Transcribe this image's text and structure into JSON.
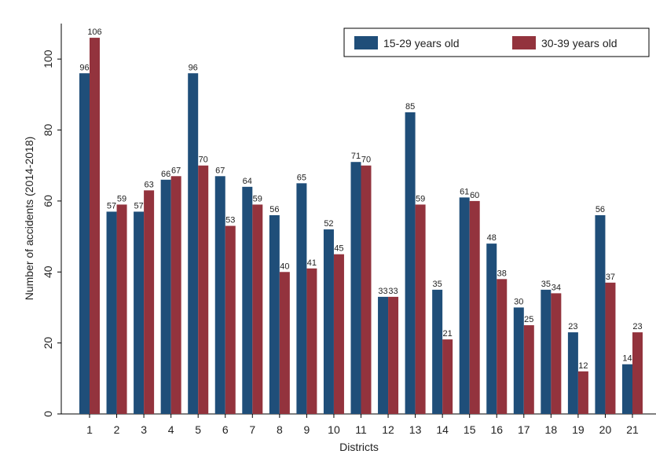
{
  "chart_data": {
    "type": "bar",
    "xlabel": "Districts",
    "ylabel": "Number of accidents (2014-2018)",
    "ylim": [
      0,
      110
    ],
    "yticks": [
      0,
      20,
      40,
      60,
      80,
      100
    ],
    "categories": [
      "1",
      "2",
      "3",
      "4",
      "5",
      "6",
      "7",
      "8",
      "9",
      "10",
      "11",
      "12",
      "13",
      "14",
      "15",
      "16",
      "17",
      "18",
      "19",
      "20",
      "21"
    ],
    "series": [
      {
        "name": "15-29 years old",
        "color": "#1f4e79",
        "values": [
          96,
          57,
          57,
          66,
          96,
          67,
          64,
          56,
          65,
          52,
          71,
          33,
          85,
          35,
          61,
          48,
          30,
          35,
          23,
          56,
          14
        ]
      },
      {
        "name": "30-39 years old",
        "color": "#93333d",
        "values": [
          106,
          59,
          63,
          67,
          70,
          53,
          59,
          40,
          41,
          45,
          70,
          33,
          59,
          21,
          60,
          38,
          25,
          34,
          12,
          37,
          23
        ]
      }
    ],
    "legend_position": "top-right",
    "grid": false
  }
}
